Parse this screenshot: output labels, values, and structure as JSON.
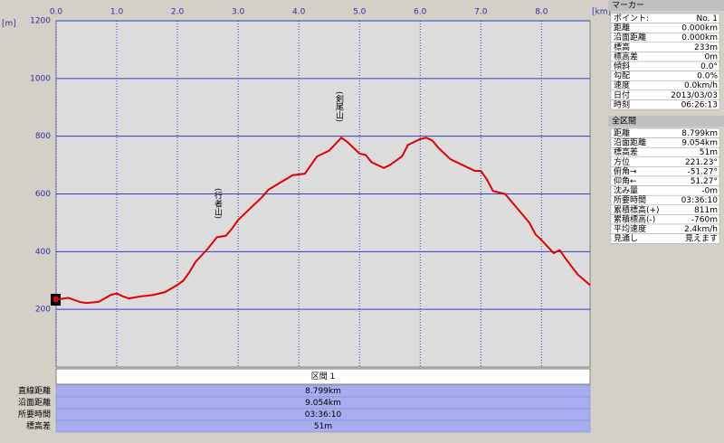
{
  "chart_data": {
    "type": "line",
    "xlabel": "[km]",
    "ylabel": "[m]",
    "color": "#e00000",
    "x": [
      0.0,
      0.2,
      0.4,
      0.5,
      0.7,
      0.9,
      1.0,
      1.1,
      1.2,
      1.4,
      1.6,
      1.8,
      2.0,
      2.1,
      2.2,
      2.3,
      2.5,
      2.65,
      2.8,
      2.9,
      3.0,
      3.2,
      3.4,
      3.5,
      3.7,
      3.9,
      4.1,
      4.2,
      4.3,
      4.5,
      4.7,
      4.8,
      5.0,
      5.1,
      5.2,
      5.4,
      5.5,
      5.7,
      5.8,
      6.0,
      6.1,
      6.2,
      6.3,
      6.5,
      6.7,
      6.9,
      7.0,
      7.1,
      7.2,
      7.4,
      7.6,
      7.8,
      7.9,
      8.0,
      8.2,
      8.3,
      8.4,
      8.6,
      8.8
    ],
    "values": [
      233,
      240,
      225,
      222,
      226,
      250,
      255,
      245,
      238,
      245,
      250,
      260,
      285,
      300,
      330,
      365,
      410,
      450,
      455,
      480,
      510,
      550,
      590,
      615,
      640,
      665,
      670,
      700,
      730,
      750,
      795,
      780,
      740,
      735,
      710,
      690,
      700,
      730,
      770,
      790,
      795,
      785,
      760,
      720,
      700,
      680,
      680,
      650,
      610,
      600,
      550,
      500,
      460,
      440,
      395,
      405,
      375,
      320,
      284
    ],
    "xlim": [
      0,
      8.8
    ],
    "ylim": [
      0,
      1200
    ],
    "xticks": [
      {
        "value": 0,
        "label": "0.0"
      },
      {
        "value": 1,
        "label": "1.0"
      },
      {
        "value": 2,
        "label": "2.0"
      },
      {
        "value": 3,
        "label": "3.0"
      },
      {
        "value": 4,
        "label": "4.0"
      },
      {
        "value": 5,
        "label": "5.0"
      },
      {
        "value": 6,
        "label": "6.0"
      },
      {
        "value": 7,
        "label": "7.0"
      },
      {
        "value": 8,
        "label": "8.0"
      }
    ],
    "yticks": [
      200,
      400,
      600,
      800,
      1000,
      1200
    ],
    "grid": true,
    "annotations": [
      "(行者山)",
      "(剣尾山)"
    ]
  },
  "marker_panel": {
    "title": "マーカー",
    "rows": [
      [
        "ポイント:",
        "No. 1"
      ],
      [
        "距離",
        "0.000km"
      ],
      [
        "沿面距離",
        "0.000km"
      ],
      [
        "標高",
        "233m"
      ],
      [
        "標高差",
        "0m"
      ],
      [
        "傾斜",
        "0.0°"
      ],
      [
        "勾配",
        "0.0%"
      ],
      [
        "速度",
        "0.0km/h"
      ],
      [
        "日付",
        "2013/03/03"
      ],
      [
        "時刻",
        "06:26:13"
      ]
    ]
  },
  "total_panel": {
    "title": "全区間",
    "rows": [
      [
        "距離",
        "8.799km"
      ],
      [
        "沿面距離",
        "9.054km"
      ],
      [
        "標高差",
        "51m"
      ],
      [
        "方位",
        "221.23°"
      ],
      [
        "俯角→",
        "-51.27°"
      ],
      [
        "仰角←",
        "51.27°"
      ],
      [
        "沈み量",
        "-0m"
      ],
      [
        "所要時間",
        "03:36:10"
      ],
      [
        "累積標高(+)",
        "811m"
      ],
      [
        "累積標高(-)",
        "-760m"
      ],
      [
        "平均速度",
        "2.4km/h"
      ],
      [
        "見通し",
        "見えます"
      ]
    ]
  },
  "section_table": {
    "header": "区間 1",
    "rows": [
      [
        "直線距離",
        "8.799km"
      ],
      [
        "沿面距離",
        "9.054km"
      ],
      [
        "所要時間",
        "03:36:10"
      ],
      [
        "標高差",
        "51m"
      ]
    ]
  }
}
